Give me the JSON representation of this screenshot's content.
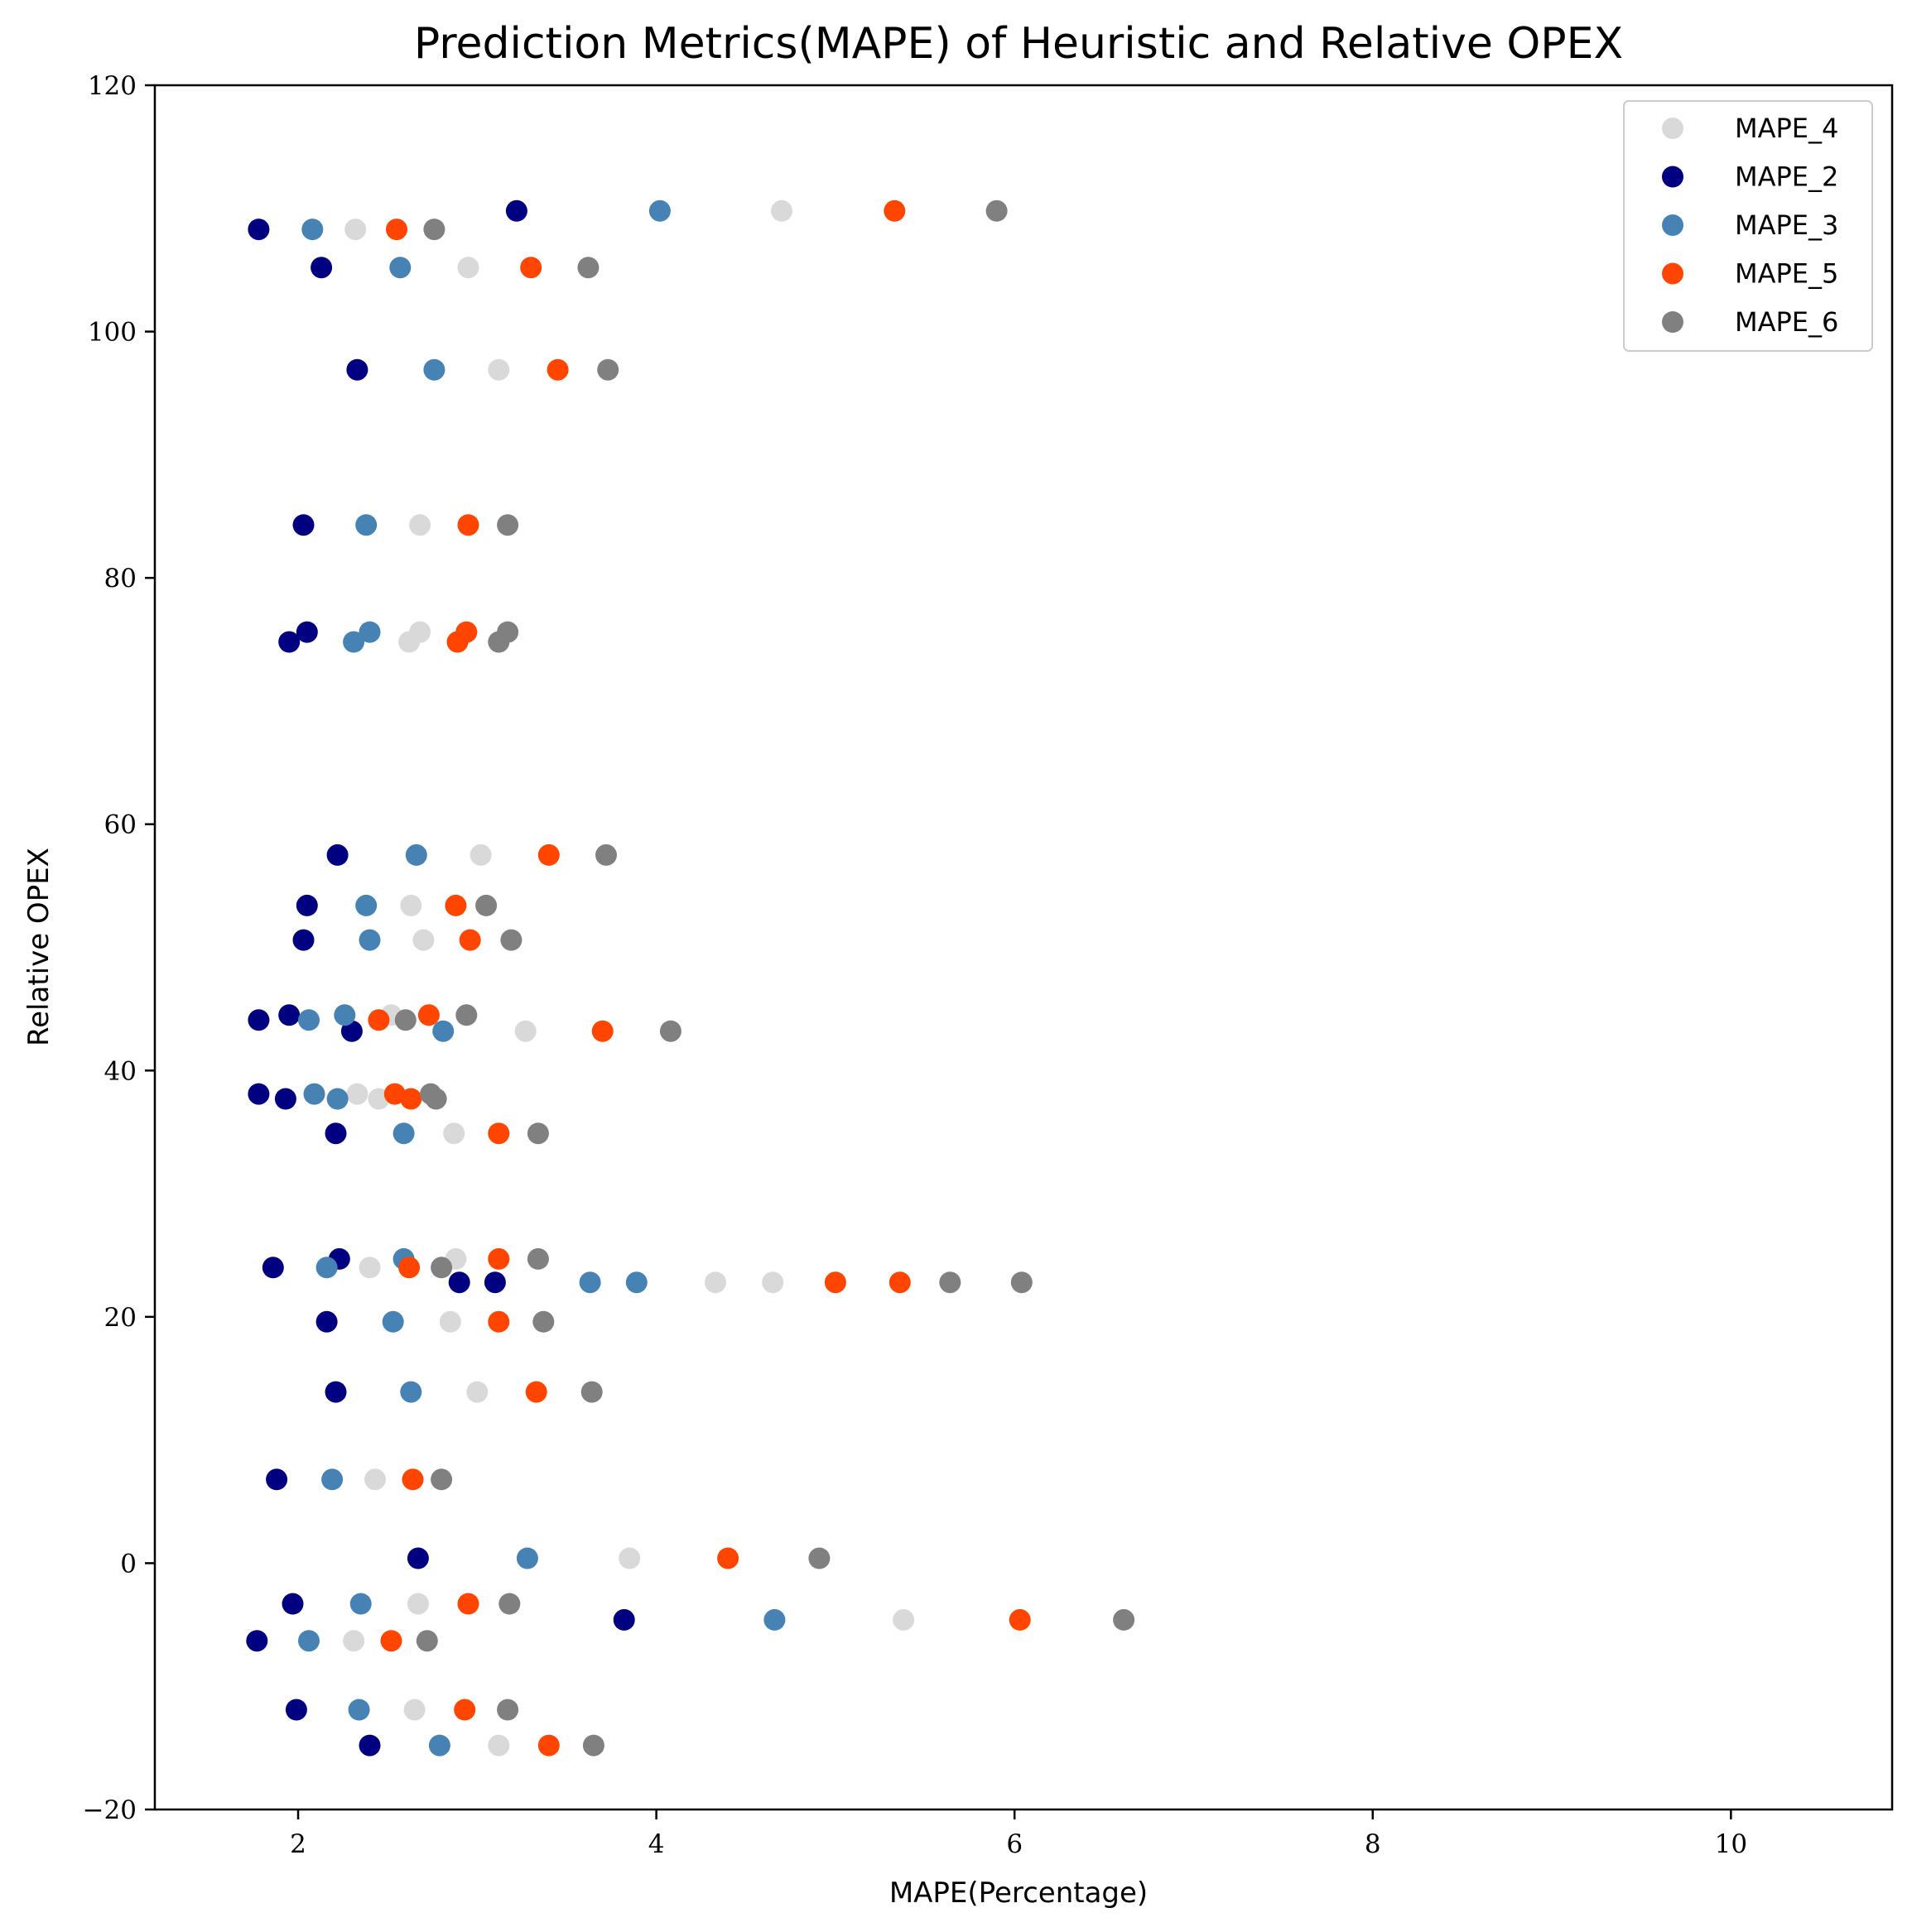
{
  "chart_data": {
    "type": "scatter",
    "title": "Prediction Metrics(MAPE) of Heuristic and Relative OPEX",
    "xlabel": "MAPE(Percentage)",
    "ylabel": "Relative OPEX",
    "xlim": [
      1.2,
      10.9
    ],
    "ylim": [
      -20,
      120
    ],
    "xticks": [
      2,
      4,
      6,
      8,
      10
    ],
    "yticks": [
      -20,
      0,
      20,
      40,
      60,
      80,
      100,
      120
    ],
    "xtick_labels": [
      "2",
      "4",
      "6",
      "8",
      "10"
    ],
    "ytick_labels": [
      "−20",
      "0",
      "20",
      "40",
      "60",
      "80",
      "100",
      "120"
    ],
    "grid": false,
    "legend_position": "top-right",
    "series": [
      {
        "name": "MAPE_4",
        "color": "#d9d9d9",
        "points": [
          [
            2.32,
            108.3
          ],
          [
            4.7,
            109.8
          ],
          [
            2.95,
            105.2
          ],
          [
            3.12,
            96.9
          ],
          [
            2.68,
            84.3
          ],
          [
            2.62,
            74.8
          ],
          [
            2.68,
            75.6
          ],
          [
            3.02,
            57.5
          ],
          [
            2.63,
            53.4
          ],
          [
            2.7,
            50.6
          ],
          [
            2.52,
            44.5
          ],
          [
            3.27,
            43.2
          ],
          [
            2.33,
            38.1
          ],
          [
            2.45,
            37.7
          ],
          [
            2.87,
            34.9
          ],
          [
            2.88,
            24.7
          ],
          [
            2.4,
            24.0
          ],
          [
            4.33,
            22.8
          ],
          [
            4.65,
            22.8
          ],
          [
            2.85,
            19.6
          ],
          [
            3.0,
            13.9
          ],
          [
            2.43,
            6.8
          ],
          [
            3.85,
            0.4
          ],
          [
            2.67,
            -3.3
          ],
          [
            5.38,
            -4.6
          ],
          [
            2.31,
            -6.3
          ],
          [
            2.65,
            -11.9
          ],
          [
            3.12,
            -14.8
          ]
        ]
      },
      {
        "name": "MAPE_2",
        "color": "#000080",
        "points": [
          [
            1.78,
            108.3
          ],
          [
            3.22,
            109.8
          ],
          [
            2.13,
            105.2
          ],
          [
            2.33,
            96.9
          ],
          [
            2.03,
            84.3
          ],
          [
            1.95,
            74.8
          ],
          [
            2.05,
            75.6
          ],
          [
            2.22,
            57.5
          ],
          [
            2.05,
            53.4
          ],
          [
            2.03,
            50.6
          ],
          [
            1.78,
            44.1
          ],
          [
            1.95,
            44.5
          ],
          [
            2.3,
            43.2
          ],
          [
            1.78,
            38.1
          ],
          [
            1.93,
            37.7
          ],
          [
            2.21,
            34.9
          ],
          [
            2.23,
            24.7
          ],
          [
            1.86,
            24.0
          ],
          [
            2.9,
            22.8
          ],
          [
            3.1,
            22.8
          ],
          [
            2.16,
            19.6
          ],
          [
            2.21,
            13.9
          ],
          [
            1.88,
            6.8
          ],
          [
            2.67,
            0.4
          ],
          [
            1.97,
            -3.3
          ],
          [
            3.82,
            -4.6
          ],
          [
            1.77,
            -6.3
          ],
          [
            1.99,
            -11.9
          ],
          [
            2.4,
            -14.8
          ]
        ]
      },
      {
        "name": "MAPE_3",
        "color": "#4682b4",
        "points": [
          [
            2.08,
            108.3
          ],
          [
            4.02,
            109.8
          ],
          [
            2.57,
            105.2
          ],
          [
            2.76,
            96.9
          ],
          [
            2.38,
            84.3
          ],
          [
            2.31,
            74.8
          ],
          [
            2.4,
            75.6
          ],
          [
            2.66,
            57.5
          ],
          [
            2.38,
            53.4
          ],
          [
            2.4,
            50.6
          ],
          [
            2.06,
            44.1
          ],
          [
            2.26,
            44.5
          ],
          [
            2.81,
            43.2
          ],
          [
            2.09,
            38.1
          ],
          [
            2.22,
            37.7
          ],
          [
            2.59,
            34.9
          ],
          [
            2.59,
            24.7
          ],
          [
            2.16,
            24.0
          ],
          [
            3.63,
            22.8
          ],
          [
            3.89,
            22.8
          ],
          [
            2.53,
            19.6
          ],
          [
            2.63,
            13.9
          ],
          [
            2.19,
            6.8
          ],
          [
            3.28,
            0.4
          ],
          [
            2.35,
            -3.3
          ],
          [
            4.66,
            -4.6
          ],
          [
            2.06,
            -6.3
          ],
          [
            2.34,
            -11.9
          ],
          [
            2.79,
            -14.8
          ]
        ]
      },
      {
        "name": "MAPE_5",
        "color": "#ff4500",
        "points": [
          [
            2.55,
            108.3
          ],
          [
            5.33,
            109.8
          ],
          [
            3.3,
            105.2
          ],
          [
            3.45,
            96.9
          ],
          [
            2.95,
            84.3
          ],
          [
            2.89,
            74.8
          ],
          [
            2.94,
            75.6
          ],
          [
            3.4,
            57.5
          ],
          [
            2.88,
            53.4
          ],
          [
            2.96,
            50.6
          ],
          [
            2.45,
            44.1
          ],
          [
            2.73,
            44.5
          ],
          [
            3.7,
            43.2
          ],
          [
            2.54,
            38.1
          ],
          [
            2.63,
            37.7
          ],
          [
            3.12,
            34.9
          ],
          [
            3.12,
            24.7
          ],
          [
            2.62,
            24.0
          ],
          [
            5.0,
            22.8
          ],
          [
            5.36,
            22.8
          ],
          [
            3.12,
            19.6
          ],
          [
            3.33,
            13.9
          ],
          [
            2.64,
            6.8
          ],
          [
            4.4,
            0.4
          ],
          [
            2.95,
            -3.3
          ],
          [
            6.03,
            -4.6
          ],
          [
            2.52,
            -6.3
          ],
          [
            2.93,
            -11.9
          ],
          [
            3.4,
            -14.8
          ]
        ]
      },
      {
        "name": "MAPE_6",
        "color": "#808080",
        "points": [
          [
            2.76,
            108.3
          ],
          [
            5.9,
            109.8
          ],
          [
            3.62,
            105.2
          ],
          [
            3.73,
            96.9
          ],
          [
            3.17,
            84.3
          ],
          [
            3.12,
            74.8
          ],
          [
            3.17,
            75.6
          ],
          [
            3.72,
            57.5
          ],
          [
            3.05,
            53.4
          ],
          [
            3.19,
            50.6
          ],
          [
            2.6,
            44.1
          ],
          [
            2.94,
            44.5
          ],
          [
            4.08,
            43.2
          ],
          [
            2.74,
            38.1
          ],
          [
            2.77,
            37.7
          ],
          [
            3.34,
            34.9
          ],
          [
            3.34,
            24.7
          ],
          [
            2.8,
            24.0
          ],
          [
            5.64,
            22.8
          ],
          [
            6.04,
            22.8
          ],
          [
            3.37,
            19.6
          ],
          [
            3.64,
            13.9
          ],
          [
            2.8,
            6.8
          ],
          [
            4.91,
            0.4
          ],
          [
            3.18,
            -3.3
          ],
          [
            6.61,
            -4.6
          ],
          [
            2.72,
            -6.3
          ],
          [
            3.17,
            -11.9
          ],
          [
            3.65,
            -14.8
          ]
        ]
      }
    ]
  }
}
